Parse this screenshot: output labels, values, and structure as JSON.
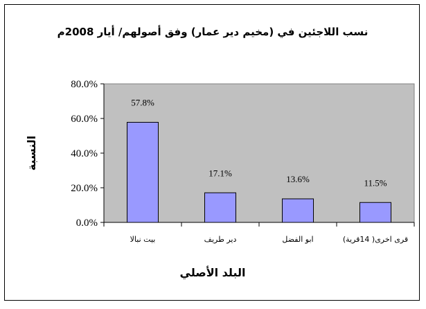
{
  "chart_data": {
    "type": "bar",
    "title": "نسب اللاجئين في (مخيم دير عمار) وفق أصولهم/ أيار 2008م",
    "xlabel": "البلد الأصلي",
    "ylabel": "النسبة",
    "categories": [
      "بيت نبالا",
      "دير طريف",
      "ابو الفضل",
      "قرى اخرى( 14قرية)"
    ],
    "values": [
      57.8,
      17.1,
      13.6,
      11.5
    ],
    "value_labels": [
      "57.8%",
      "17.1%",
      "13.6%",
      "11.5%"
    ],
    "ylim": [
      0,
      80
    ],
    "yticks": [
      0,
      20,
      40,
      60,
      80
    ],
    "ytick_labels": [
      "0.0%",
      "20.0%",
      "40.0%",
      "60.0%",
      "80.0%"
    ],
    "grid": false,
    "legend": "none",
    "colors": {
      "bar": "#9999ff",
      "bar_edge": "#000000",
      "plot_bg": "#c0c0c0",
      "page_bg": "#ffffff"
    }
  }
}
